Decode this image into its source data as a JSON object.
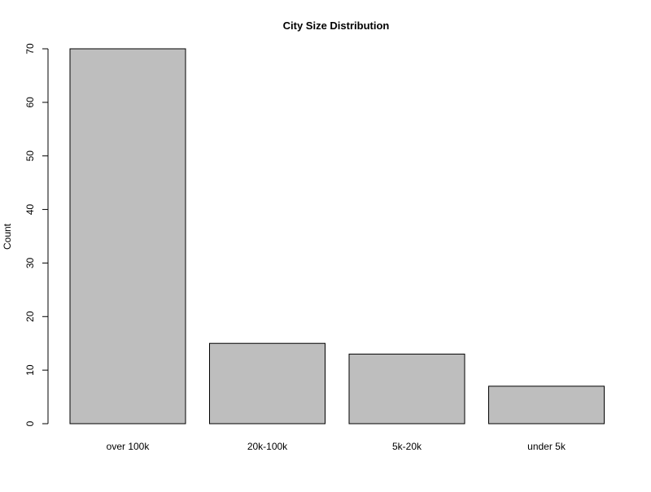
{
  "chart_data": {
    "type": "bar",
    "title": "City Size Distribution",
    "xlabel": "",
    "ylabel": "Count",
    "categories": [
      "over 100k",
      "20k-100k",
      "5k-20k",
      "under 5k"
    ],
    "values": [
      70,
      15,
      13,
      7
    ],
    "ylim": [
      0,
      70
    ],
    "yticks": [
      0,
      10,
      20,
      30,
      40,
      50,
      60,
      70
    ],
    "grid": false,
    "bar_color": "#bebebe",
    "bar_edge_color": "#000000"
  }
}
